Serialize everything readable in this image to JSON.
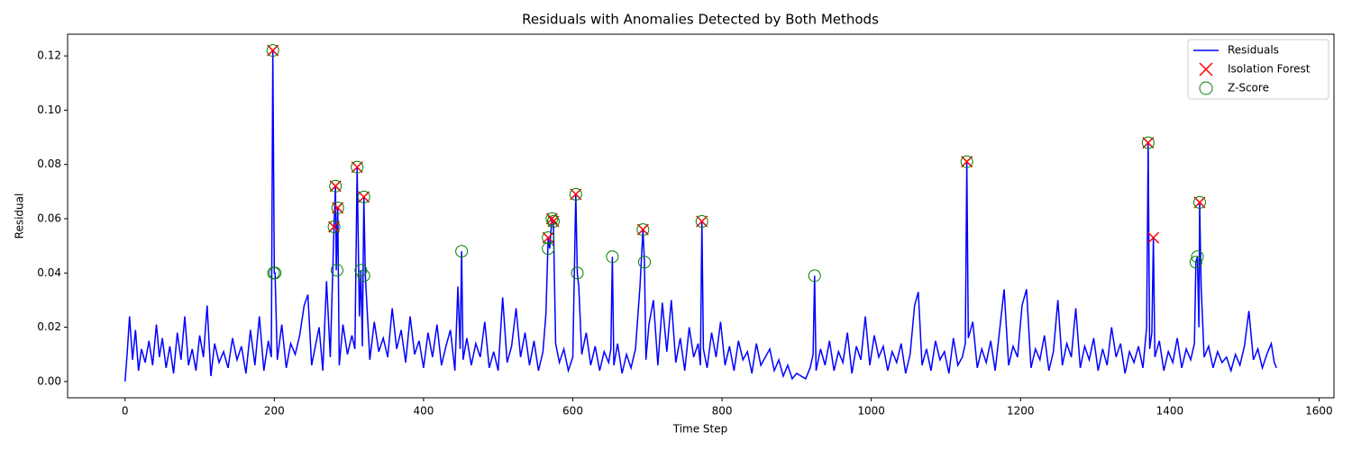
{
  "chart_data": {
    "type": "line",
    "title": "Residuals with Anomalies Detected by Both Methods",
    "x_label": "Time Step",
    "y_label": "Residual",
    "xlim": [
      -77,
      1620
    ],
    "ylim": [
      -0.006,
      0.128
    ],
    "xticks": [
      0,
      200,
      400,
      600,
      800,
      1000,
      1200,
      1400,
      1600
    ],
    "yticks": [
      {
        "value": 0,
        "label": "0.00"
      },
      {
        "value": 0.02,
        "label": "0.02"
      },
      {
        "value": 0.04,
        "label": "0.04"
      },
      {
        "value": 0.06,
        "label": "0.06"
      },
      {
        "value": 0.08,
        "label": "0.08"
      },
      {
        "value": 0.1,
        "label": "0.10"
      },
      {
        "value": 0.12,
        "label": "0.12"
      }
    ],
    "legend": "upper right",
    "series": [
      {
        "name": "Residuals",
        "type": "line",
        "color": "#0000ff",
        "x": [
          0,
          3,
          6,
          10,
          14,
          18,
          22,
          27,
          32,
          37,
          42,
          46,
          50,
          55,
          60,
          65,
          70,
          75,
          80,
          85,
          90,
          95,
          100,
          105,
          110,
          115,
          120,
          126,
          132,
          138,
          144,
          150,
          156,
          162,
          168,
          174,
          180,
          186,
          192,
          196,
          198,
          200,
          201,
          204,
          210,
          216,
          222,
          228,
          234,
          240,
          245,
          250,
          255,
          260,
          265,
          270,
          275,
          280,
          282,
          283,
          285,
          287,
          292,
          298,
          304,
          308,
          311,
          314,
          316,
          318,
          320,
          322,
          328,
          334,
          340,
          346,
          352,
          358,
          364,
          370,
          376,
          382,
          388,
          394,
          400,
          406,
          412,
          418,
          424,
          430,
          436,
          442,
          446,
          449,
          451,
          453,
          458,
          464,
          470,
          476,
          482,
          488,
          494,
          500,
          506,
          512,
          518,
          524,
          530,
          536,
          542,
          548,
          554,
          560,
          564,
          567,
          569,
          572,
          574,
          577,
          582,
          588,
          594,
          600,
          604,
          606,
          608,
          612,
          618,
          624,
          630,
          636,
          642,
          648,
          651,
          653,
          655,
          660,
          666,
          672,
          678,
          684,
          690,
          694,
          696,
          698,
          702,
          708,
          714,
          720,
          726,
          732,
          738,
          744,
          750,
          756,
          762,
          768,
          771,
          773,
          775,
          780,
          786,
          792,
          798,
          804,
          810,
          816,
          822,
          828,
          834,
          840,
          846,
          852,
          858,
          864,
          870,
          876,
          882,
          888,
          894,
          900,
          906,
          912,
          918,
          922,
          924,
          926,
          932,
          938,
          944,
          950,
          956,
          962,
          968,
          974,
          980,
          986,
          992,
          998,
          1004,
          1010,
          1016,
          1022,
          1028,
          1034,
          1040,
          1046,
          1052,
          1058,
          1063,
          1068,
          1074,
          1080,
          1086,
          1092,
          1098,
          1104,
          1110,
          1116,
          1122,
          1126,
          1128,
          1130,
          1136,
          1142,
          1148,
          1154,
          1160,
          1166,
          1172,
          1178,
          1184,
          1190,
          1196,
          1202,
          1208,
          1214,
          1220,
          1226,
          1232,
          1238,
          1244,
          1250,
          1256,
          1262,
          1268,
          1274,
          1280,
          1286,
          1292,
          1298,
          1304,
          1310,
          1316,
          1322,
          1328,
          1334,
          1340,
          1346,
          1352,
          1358,
          1364,
          1369,
          1371,
          1373,
          1376,
          1378,
          1380,
          1386,
          1392,
          1398,
          1404,
          1410,
          1416,
          1422,
          1428,
          1433,
          1435,
          1437,
          1439,
          1440,
          1442,
          1446,
          1452,
          1458,
          1464,
          1470,
          1476,
          1482,
          1488,
          1494,
          1500,
          1506,
          1512,
          1518,
          1524,
          1530,
          1536,
          1540,
          1543
        ],
        "values": [
          0.0,
          0.011,
          0.024,
          0.008,
          0.019,
          0.004,
          0.012,
          0.007,
          0.015,
          0.006,
          0.021,
          0.009,
          0.016,
          0.005,
          0.013,
          0.003,
          0.018,
          0.008,
          0.024,
          0.006,
          0.012,
          0.004,
          0.017,
          0.009,
          0.028,
          0.002,
          0.014,
          0.007,
          0.011,
          0.005,
          0.016,
          0.008,
          0.013,
          0.003,
          0.019,
          0.006,
          0.024,
          0.004,
          0.015,
          0.009,
          0.122,
          0.04,
          0.04,
          0.008,
          0.021,
          0.005,
          0.014,
          0.01,
          0.017,
          0.028,
          0.032,
          0.006,
          0.013,
          0.02,
          0.004,
          0.037,
          0.009,
          0.057,
          0.072,
          0.041,
          0.064,
          0.006,
          0.021,
          0.01,
          0.017,
          0.012,
          0.079,
          0.024,
          0.041,
          0.013,
          0.068,
          0.039,
          0.008,
          0.022,
          0.011,
          0.016,
          0.009,
          0.027,
          0.012,
          0.019,
          0.007,
          0.024,
          0.01,
          0.015,
          0.005,
          0.018,
          0.009,
          0.021,
          0.006,
          0.013,
          0.019,
          0.004,
          0.035,
          0.012,
          0.048,
          0.008,
          0.016,
          0.006,
          0.014,
          0.009,
          0.022,
          0.005,
          0.011,
          0.004,
          0.031,
          0.007,
          0.013,
          0.027,
          0.009,
          0.018,
          0.006,
          0.015,
          0.004,
          0.011,
          0.025,
          0.053,
          0.049,
          0.06,
          0.059,
          0.014,
          0.007,
          0.012,
          0.004,
          0.009,
          0.069,
          0.04,
          0.035,
          0.01,
          0.018,
          0.006,
          0.013,
          0.004,
          0.011,
          0.007,
          0.012,
          0.046,
          0.006,
          0.014,
          0.003,
          0.01,
          0.005,
          0.012,
          0.035,
          0.056,
          0.044,
          0.008,
          0.021,
          0.03,
          0.006,
          0.029,
          0.011,
          0.03,
          0.007,
          0.016,
          0.004,
          0.02,
          0.009,
          0.014,
          0.006,
          0.059,
          0.012,
          0.005,
          0.018,
          0.009,
          0.022,
          0.006,
          0.013,
          0.004,
          0.015,
          0.008,
          0.011,
          0.003,
          0.014,
          0.006,
          0.009,
          0.012,
          0.004,
          0.008,
          0.002,
          0.006,
          0.001,
          0.003,
          0.002,
          0.001,
          0.005,
          0.01,
          0.039,
          0.004,
          0.012,
          0.006,
          0.015,
          0.004,
          0.011,
          0.007,
          0.018,
          0.003,
          0.013,
          0.008,
          0.024,
          0.006,
          0.017,
          0.009,
          0.013,
          0.004,
          0.011,
          0.007,
          0.014,
          0.003,
          0.01,
          0.028,
          0.033,
          0.006,
          0.012,
          0.004,
          0.015,
          0.008,
          0.011,
          0.003,
          0.016,
          0.006,
          0.009,
          0.014,
          0.081,
          0.016,
          0.022,
          0.005,
          0.012,
          0.007,
          0.015,
          0.004,
          0.019,
          0.034,
          0.006,
          0.013,
          0.009,
          0.028,
          0.034,
          0.005,
          0.012,
          0.008,
          0.017,
          0.004,
          0.011,
          0.03,
          0.006,
          0.014,
          0.009,
          0.027,
          0.005,
          0.013,
          0.008,
          0.016,
          0.004,
          0.012,
          0.006,
          0.02,
          0.009,
          0.014,
          0.003,
          0.011,
          0.007,
          0.013,
          0.005,
          0.02,
          0.088,
          0.012,
          0.018,
          0.053,
          0.009,
          0.015,
          0.004,
          0.011,
          0.007,
          0.016,
          0.005,
          0.012,
          0.008,
          0.014,
          0.044,
          0.046,
          0.02,
          0.066,
          0.035,
          0.009,
          0.013,
          0.005,
          0.011,
          0.007,
          0.009,
          0.004,
          0.01,
          0.006,
          0.013,
          0.026,
          0.008,
          0.012,
          0.005,
          0.01,
          0.014,
          0.007,
          0.005
        ]
      },
      {
        "name": "Isolation Forest",
        "type": "scatter",
        "marker": "x",
        "color": "#ff0000",
        "x": [
          198,
          280,
          282,
          285,
          311,
          320,
          567,
          572,
          574,
          604,
          694,
          773,
          1128,
          1371,
          1378,
          1440
        ],
        "values": [
          0.122,
          0.057,
          0.072,
          0.064,
          0.079,
          0.068,
          0.053,
          0.06,
          0.059,
          0.069,
          0.056,
          0.059,
          0.081,
          0.088,
          0.053,
          0.066
        ]
      },
      {
        "name": "Z-Score",
        "type": "scatter",
        "marker": "circle",
        "color": "#008000",
        "x": [
          198,
          199,
          201,
          280,
          282,
          284,
          285,
          311,
          316,
          320,
          320,
          451,
          567,
          567,
          572,
          574,
          604,
          606,
          653,
          694,
          696,
          773,
          924,
          1128,
          1371,
          1435,
          1437,
          1440
        ],
        "values": [
          0.122,
          0.04,
          0.04,
          0.057,
          0.072,
          0.041,
          0.064,
          0.079,
          0.041,
          0.068,
          0.039,
          0.048,
          0.053,
          0.049,
          0.06,
          0.059,
          0.069,
          0.04,
          0.046,
          0.056,
          0.044,
          0.059,
          0.039,
          0.081,
          0.088,
          0.044,
          0.046,
          0.066
        ]
      }
    ]
  }
}
